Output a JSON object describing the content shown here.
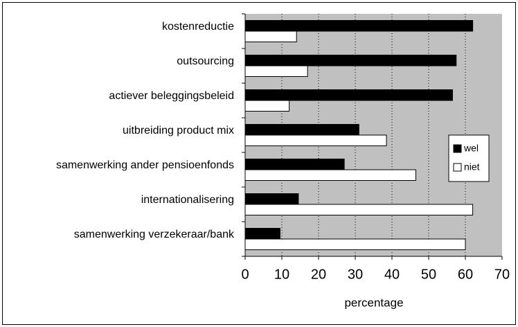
{
  "chart_data": {
    "type": "bar",
    "orientation": "horizontal",
    "categories": [
      "kostenreductie",
      "outsourcing",
      "actiever beleggingsbeleid",
      "uitbreiding product mix",
      "samenwerking ander pensioenfonds",
      "internationalisering",
      "samenwerking verzekeraar/bank"
    ],
    "series": [
      {
        "name": "wel",
        "color": "#000000",
        "values": [
          62,
          57.5,
          56.5,
          31,
          27,
          14.5,
          9.5
        ]
      },
      {
        "name": "niet",
        "color": "#ffffff",
        "values": [
          14,
          17,
          12,
          38.5,
          46.5,
          62,
          60
        ]
      }
    ],
    "xlabel": "percentage",
    "xlim": [
      0,
      70
    ],
    "xticks": [
      0,
      10,
      20,
      30,
      40,
      50,
      60,
      70
    ],
    "grid": true,
    "legend": "right"
  }
}
